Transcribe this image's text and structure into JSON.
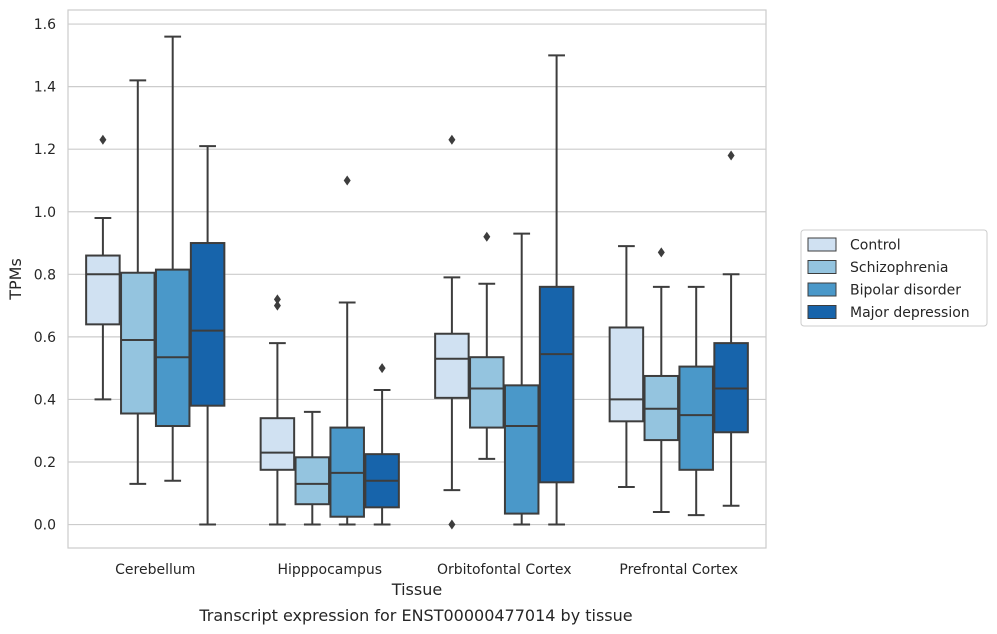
{
  "chart_data": {
    "type": "boxplot",
    "xlabel": "Tissue",
    "ylabel": "TPMs",
    "ylim": [
      -0.075,
      1.645
    ],
    "yticks": [
      0.0,
      0.2,
      0.4,
      0.6,
      0.8,
      1.0,
      1.2,
      1.4,
      1.6
    ],
    "ytick_labels": [
      "0.0",
      "0.2",
      "0.4",
      "0.6",
      "0.8",
      "1.0",
      "1.2",
      "1.4",
      "1.6"
    ],
    "grid": true,
    "legend_position": "right",
    "categories": [
      "Cerebellum",
      "Hipppocampus",
      "Orbitofontal Cortex",
      "Prefrontal Cortex"
    ],
    "series": [
      {
        "name": "Control",
        "color": "#d0e1f2",
        "boxes": [
          {
            "whislo": 0.4,
            "q1": 0.64,
            "med": 0.8,
            "q3": 0.86,
            "whishi": 0.98,
            "fliers": [
              1.23
            ]
          },
          {
            "whislo": 0.0,
            "q1": 0.175,
            "med": 0.23,
            "q3": 0.34,
            "whishi": 0.58,
            "fliers": [
              0.7,
              0.72
            ]
          },
          {
            "whislo": 0.11,
            "q1": 0.405,
            "med": 0.53,
            "q3": 0.61,
            "whishi": 0.79,
            "fliers": [
              0.0,
              1.23
            ]
          },
          {
            "whislo": 0.12,
            "q1": 0.33,
            "med": 0.4,
            "q3": 0.63,
            "whishi": 0.89,
            "fliers": []
          }
        ]
      },
      {
        "name": "Schizophrenia",
        "color": "#94c4df",
        "boxes": [
          {
            "whislo": 0.13,
            "q1": 0.355,
            "med": 0.59,
            "q3": 0.805,
            "whishi": 1.42,
            "fliers": []
          },
          {
            "whislo": 0.0,
            "q1": 0.065,
            "med": 0.13,
            "q3": 0.215,
            "whishi": 0.36,
            "fliers": []
          },
          {
            "whislo": 0.21,
            "q1": 0.31,
            "med": 0.435,
            "q3": 0.535,
            "whishi": 0.77,
            "fliers": [
              0.92
            ]
          },
          {
            "whislo": 0.04,
            "q1": 0.27,
            "med": 0.37,
            "q3": 0.475,
            "whishi": 0.76,
            "fliers": [
              0.87
            ]
          }
        ]
      },
      {
        "name": "Bipolar disorder",
        "color": "#4a98c9",
        "boxes": [
          {
            "whislo": 0.14,
            "q1": 0.315,
            "med": 0.535,
            "q3": 0.815,
            "whishi": 1.56,
            "fliers": []
          },
          {
            "whislo": 0.0,
            "q1": 0.025,
            "med": 0.165,
            "q3": 0.31,
            "whishi": 0.71,
            "fliers": [
              1.1
            ]
          },
          {
            "whislo": 0.0,
            "q1": 0.035,
            "med": 0.315,
            "q3": 0.445,
            "whishi": 0.93,
            "fliers": []
          },
          {
            "whislo": 0.03,
            "q1": 0.175,
            "med": 0.35,
            "q3": 0.505,
            "whishi": 0.76,
            "fliers": []
          }
        ]
      },
      {
        "name": "Major depression",
        "color": "#1764ab",
        "boxes": [
          {
            "whislo": 0.0,
            "q1": 0.38,
            "med": 0.62,
            "q3": 0.9,
            "whishi": 1.21,
            "fliers": []
          },
          {
            "whislo": 0.0,
            "q1": 0.055,
            "med": 0.14,
            "q3": 0.225,
            "whishi": 0.43,
            "fliers": [
              0.5
            ]
          },
          {
            "whislo": 0.0,
            "q1": 0.135,
            "med": 0.545,
            "q3": 0.76,
            "whishi": 1.5,
            "fliers": []
          },
          {
            "whislo": 0.06,
            "q1": 0.295,
            "med": 0.435,
            "q3": 0.58,
            "whishi": 0.8,
            "fliers": [
              1.18
            ]
          }
        ]
      }
    ]
  },
  "caption": "Transcript expression for ENST00000477014 by tissue"
}
